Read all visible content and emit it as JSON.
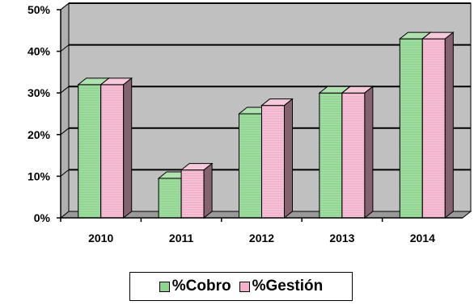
{
  "chart_data": {
    "type": "bar",
    "categories": [
      "2010",
      "2011",
      "2012",
      "2013",
      "2014"
    ],
    "series": [
      {
        "name": "%Cobro",
        "values": [
          32,
          9.5,
          25,
          30,
          43
        ],
        "color": "#8fd48f"
      },
      {
        "name": "%Gestión",
        "values": [
          32,
          11.5,
          27,
          30,
          43
        ],
        "color": "#f2b2cc"
      }
    ],
    "yticks": [
      "0%",
      "10%",
      "20%",
      "30%",
      "40%",
      "50%"
    ],
    "ylim": [
      0,
      50
    ],
    "grid": true,
    "plot_background": "#c0c0c0",
    "legend_position": "bottom"
  }
}
